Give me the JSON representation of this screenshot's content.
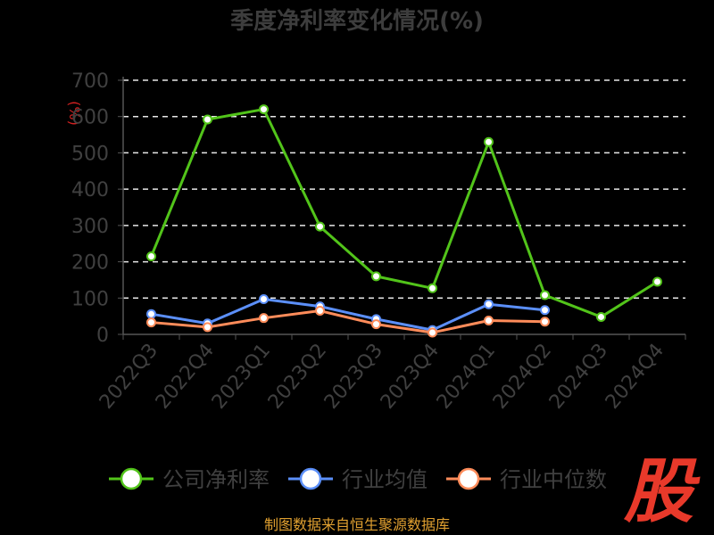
{
  "chart_data": {
    "type": "line",
    "title": "季度净利率变化情况(%)",
    "unit_label": "(%)",
    "categories": [
      "2022Q3",
      "2022Q4",
      "2023Q1",
      "2023Q2",
      "2023Q3",
      "2023Q4",
      "2024Q1",
      "2024Q2",
      "2024Q3",
      "2024Q4"
    ],
    "ylim": [
      0,
      700
    ],
    "yticks": [
      "0",
      "100",
      "200",
      "300",
      "400",
      "500",
      "600",
      "700"
    ],
    "grid": true,
    "legend_position": "bottom",
    "series": [
      {
        "name": "公司净利率",
        "color": "#52c41a",
        "values": [
          215,
          592,
          620,
          297,
          160,
          127,
          530,
          108,
          48,
          145
        ]
      },
      {
        "name": "行业均值",
        "color": "#5b8ff9",
        "values": [
          56,
          30,
          97,
          77,
          42,
          12,
          83,
          67,
          null,
          null
        ]
      },
      {
        "name": "行业中位数",
        "color": "#ff8c5a",
        "values": [
          33,
          20,
          45,
          65,
          28,
          5,
          38,
          35,
          null,
          null
        ]
      }
    ]
  },
  "footer": {
    "source": "制图数据来自恒生聚源数据库"
  },
  "logo": {
    "text": "股"
  }
}
